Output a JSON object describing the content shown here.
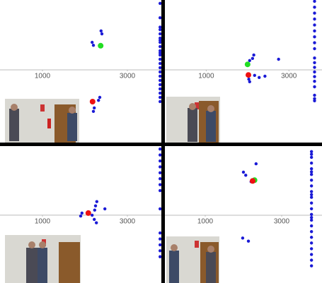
{
  "chart_data": [
    {
      "type": "scatter",
      "xlim": [
        0,
        3800
      ],
      "ylim": [
        -1717,
        1650
      ],
      "xticks": [
        1000,
        3000
      ],
      "series": [
        {
          "color": "#1a1ad6",
          "x": [
            2380,
            2400,
            2170,
            2200,
            2350,
            2320,
            2220,
            2200,
            3770,
            3770,
            3770,
            3770,
            3770,
            3770,
            3770,
            3770,
            3770,
            3770,
            3770,
            3770,
            3770,
            3770,
            3770,
            3770,
            3770,
            3770,
            3770,
            3770,
            3770,
            3770,
            3770
          ],
          "y": [
            920,
            850,
            650,
            580,
            -650,
            -720,
            -900,
            -980,
            1570,
            1230,
            950,
            850,
            750,
            650,
            550,
            450,
            350,
            250,
            150,
            50,
            -50,
            -150,
            -250,
            -350,
            -450,
            -550,
            -650,
            -750,
            1010,
            700,
            400
          ]
        },
        {
          "color": "#22dd22",
          "x": [
            2370
          ],
          "y": [
            570
          ]
        },
        {
          "color": "#ee1111",
          "x": [
            2180
          ],
          "y": [
            -750
          ]
        }
      ]
    },
    {
      "type": "scatter",
      "xlim": [
        0,
        3800
      ],
      "ylim": [
        -1717,
        1650
      ],
      "xticks": [
        1000,
        3000
      ],
      "series": [
        {
          "color": "#1a1ad6",
          "x": [
            2150,
            2120,
            2050,
            2750,
            2170,
            2030,
            2050,
            2280,
            2420,
            3620,
            3620,
            3620,
            3620,
            3620,
            3620,
            3620,
            3620,
            3620,
            3620,
            3620,
            3620,
            3620,
            3620,
            3620,
            3620,
            3620,
            3620,
            3620
          ],
          "y": [
            350,
            270,
            220,
            250,
            -130,
            -220,
            -280,
            -180,
            -150,
            1620,
            1480,
            1340,
            1200,
            1060,
            920,
            780,
            640,
            500,
            280,
            170,
            60,
            -50,
            -160,
            -270,
            -400,
            -600,
            -680,
            -730
          ]
        },
        {
          "color": "#22dd22",
          "x": [
            2000
          ],
          "y": [
            130
          ]
        },
        {
          "color": "#ee1111",
          "x": [
            2020
          ],
          "y": [
            -120
          ]
        }
      ]
    },
    {
      "type": "scatter",
      "xlim": [
        0,
        3800
      ],
      "ylim": [
        -1600,
        1630
      ],
      "xticks": [
        1000,
        3000
      ],
      "series": [
        {
          "color": "#1a1ad6",
          "x": [
            2280,
            2250,
            2230,
            2470,
            1930,
            1900,
            2170,
            2220,
            2270,
            3770,
            3770,
            3770,
            3770,
            3770,
            3770,
            3770,
            3770,
            3770,
            3770,
            3770,
            3770,
            3770,
            3770
          ],
          "y": [
            320,
            220,
            120,
            150,
            50,
            -20,
            0,
            -100,
            -180,
            1560,
            1420,
            1280,
            1140,
            1000,
            860,
            720,
            580,
            150,
            -420,
            -560,
            -700,
            -840,
            -980
          ]
        },
        {
          "color": "#ee1111",
          "x": [
            2080
          ],
          "y": [
            50
          ]
        }
      ]
    },
    {
      "type": "scatter",
      "xlim": [
        -55,
        4055
      ],
      "ylim": [
        -1780,
        1815
      ],
      "xticks": [
        1000,
        3000
      ],
      "series": [
        {
          "color": "#1a1ad6",
          "x": [
            2000,
            2060,
            2330,
            1980,
            2130,
            2200,
            3780,
            3780,
            3780,
            3780,
            3780,
            3780,
            3780,
            3780,
            3780,
            3780,
            3780,
            3780,
            3780,
            3780,
            3780,
            3780,
            3780,
            3780,
            3780,
            3780,
            3780,
            3780,
            3780,
            3780,
            3780
          ],
          "y": [
            1130,
            1050,
            1350,
            -600,
            -680,
            880,
            1670,
            1520,
            1370,
            1220,
            1070,
            920,
            770,
            620,
            470,
            320,
            170,
            20,
            -130,
            -280,
            -430,
            -580,
            -730,
            -880,
            -1030,
            -1180,
            -1330,
            1600,
            1140,
            540,
            -60
          ]
        },
        {
          "color": "#22dd22",
          "x": [
            2290
          ],
          "y": [
            920
          ]
        },
        {
          "color": "#ee1111",
          "x": [
            2240
          ],
          "y": [
            900
          ]
        }
      ]
    }
  ]
}
